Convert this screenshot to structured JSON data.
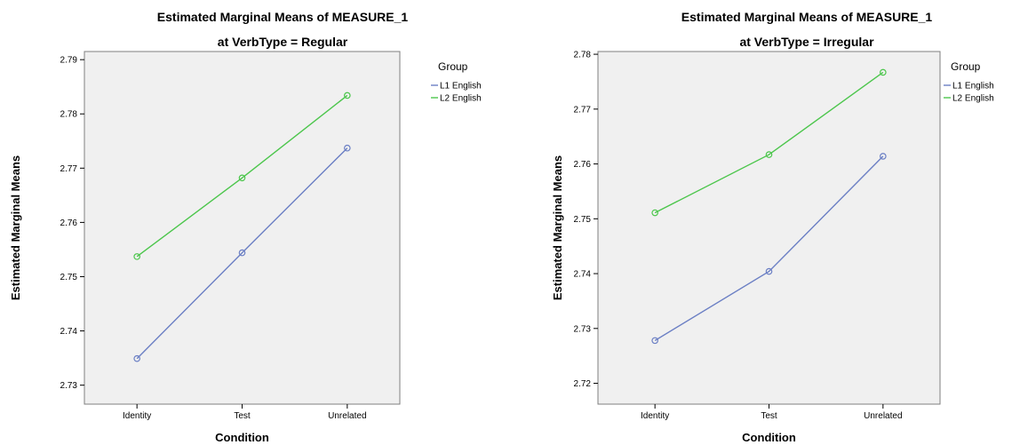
{
  "chart_data": [
    {
      "type": "line",
      "title": "Estimated Marginal Means of MEASURE_1",
      "subtitle": "at VerbType = Regular",
      "xlabel": "Condition",
      "ylabel": "Estimated Marginal Means",
      "categories": [
        "Identity",
        "Test",
        "Unrelated"
      ],
      "ylim": [
        2.7265,
        2.7915
      ],
      "yticks": [
        "2.73",
        "2.74",
        "2.75",
        "2.76",
        "2.77",
        "2.78",
        "2.79"
      ],
      "legend_title": "Group",
      "legend_position": "top-right",
      "grid": false,
      "series": [
        {
          "name": "L1 English",
          "values": [
            2.7349,
            2.7544,
            2.7737
          ],
          "color": "#6b7fc4"
        },
        {
          "name": "L2 English",
          "values": [
            2.7537,
            2.7682,
            2.7834
          ],
          "color": "#4cc64c"
        }
      ]
    },
    {
      "type": "line",
      "title": "Estimated Marginal Means of MEASURE_1",
      "subtitle": "at VerbType = Irregular",
      "xlabel": "Condition",
      "ylabel": "Estimated Marginal Means",
      "categories": [
        "Identity",
        "Test",
        "Unrelated"
      ],
      "ylim": [
        2.7162,
        2.7805
      ],
      "yticks": [
        "2.72",
        "2.73",
        "2.74",
        "2.75",
        "2.76",
        "2.77",
        "2.78"
      ],
      "legend_title": "Group",
      "legend_position": "top-right",
      "grid": false,
      "series": [
        {
          "name": "L1 English",
          "values": [
            2.7278,
            2.7404,
            2.7614
          ],
          "color": "#6b7fc4"
        },
        {
          "name": "L2 English",
          "values": [
            2.7511,
            2.7617,
            2.7767
          ],
          "color": "#4cc64c"
        }
      ]
    }
  ],
  "colors": {
    "plot_background": "#f0f0f0",
    "frame": "#7f7f7f"
  }
}
